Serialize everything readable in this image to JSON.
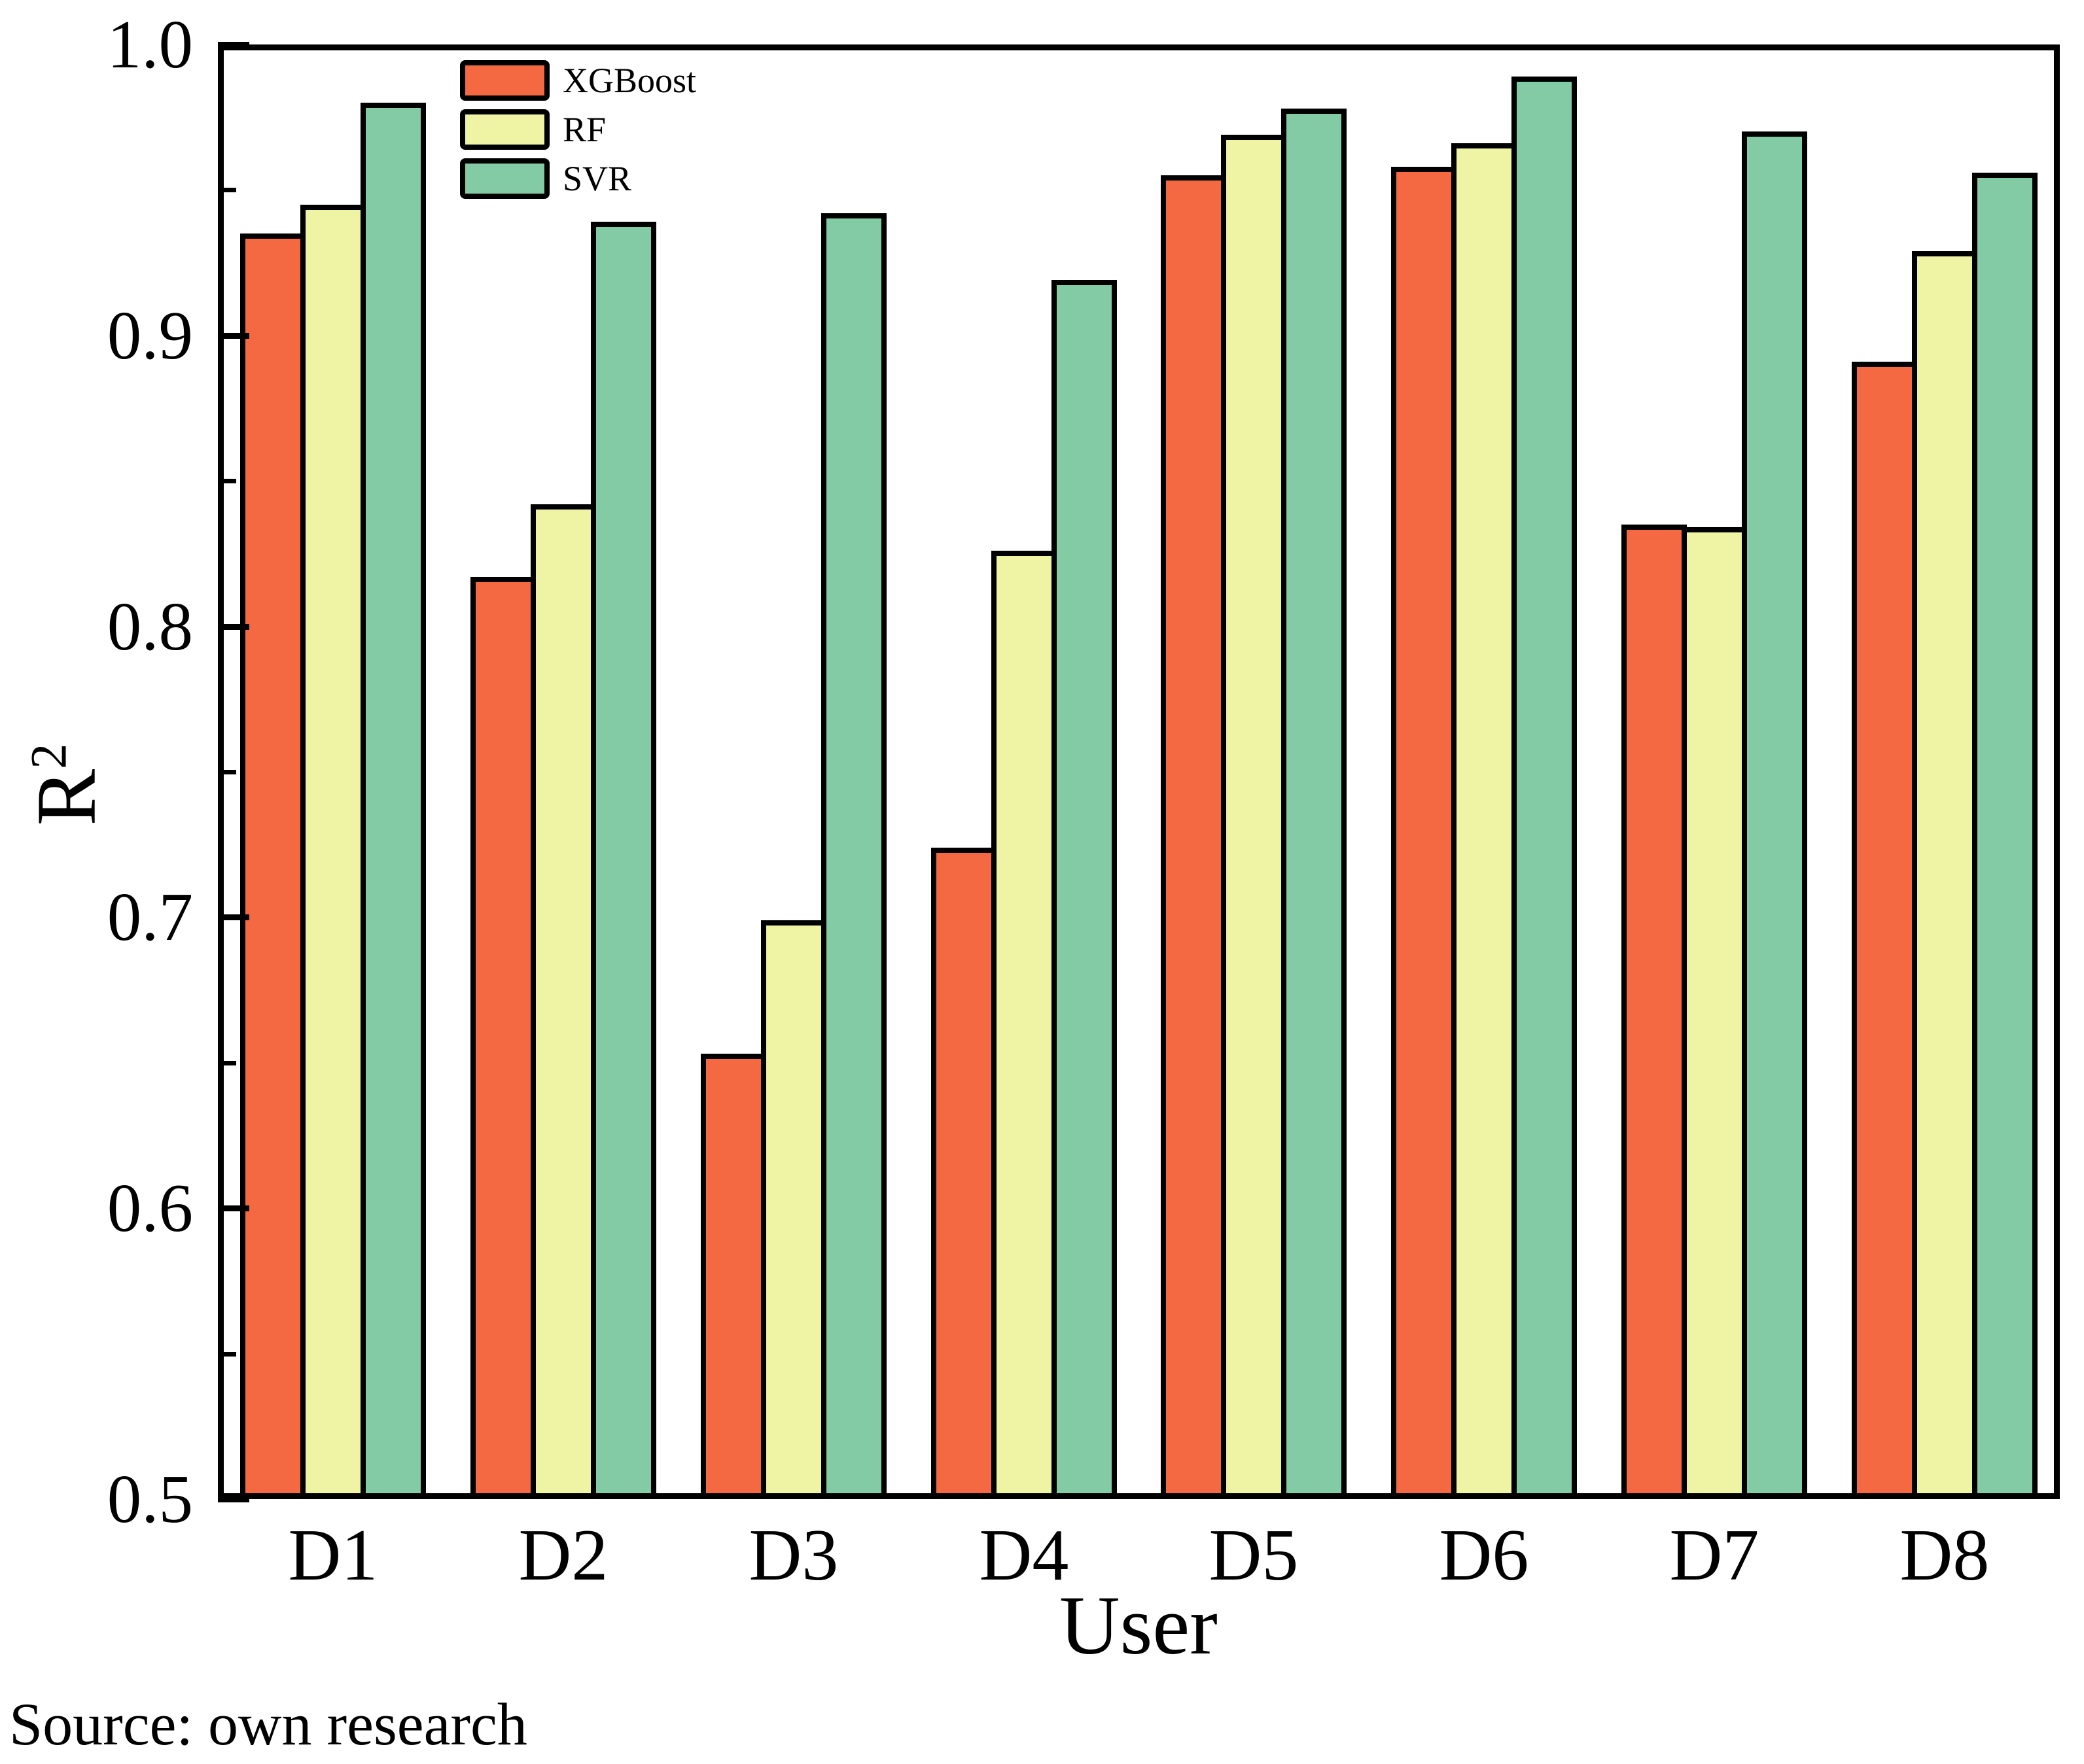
{
  "chart_data": {
    "type": "bar",
    "categories": [
      "D1",
      "D2",
      "D3",
      "D4",
      "D5",
      "D6",
      "D7",
      "D8"
    ],
    "series": [
      {
        "name": "XGBoost",
        "color": "#F56942",
        "values": [
          0.935,
          0.817,
          0.653,
          0.724,
          0.955,
          0.958,
          0.835,
          0.891
        ]
      },
      {
        "name": "RF",
        "color": "#EEF4A3",
        "values": [
          0.945,
          0.842,
          0.699,
          0.826,
          0.969,
          0.966,
          0.834,
          0.929
        ]
      },
      {
        "name": "SVR",
        "color": "#83CBA4",
        "values": [
          0.98,
          0.939,
          0.942,
          0.919,
          0.978,
          0.989,
          0.97,
          0.956
        ]
      }
    ],
    "xlabel": "User",
    "ylabel_base": "R",
    "ylabel_sup": "2",
    "ylim": [
      0.5,
      1.0
    ],
    "yticks_major": [
      0.5,
      0.6,
      0.7,
      0.8,
      0.9,
      1.0
    ],
    "ytick_labels": [
      "0.5",
      "0.6",
      "0.7",
      "0.8",
      "0.9",
      "1.0"
    ],
    "yticks_minor": [
      0.55,
      0.65,
      0.75,
      0.85,
      0.95
    ],
    "grid": false,
    "legend_position": "top-left-inside",
    "bar_edge_color": "#000000",
    "axis_color": "#000000"
  },
  "footer": {
    "source_text": "Source: own research"
  }
}
